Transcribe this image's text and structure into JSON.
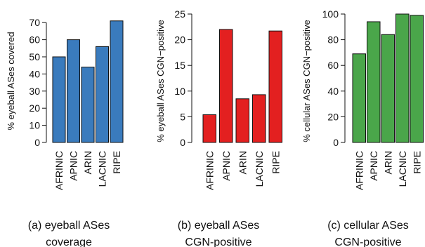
{
  "chart_data": [
    {
      "type": "bar",
      "title": "",
      "categories": [
        "AFRINIC",
        "APNIC",
        "ARIN",
        "LACNIC",
        "RIPE"
      ],
      "values": [
        50,
        60,
        44,
        56,
        71
      ],
      "ylabel": "% eyeball ASes covered",
      "xlabel": "",
      "ylim": [
        0,
        75
      ],
      "yticks": [
        0,
        10,
        20,
        30,
        40,
        50,
        60,
        70
      ],
      "color": "#3a7bbd",
      "caption": "(a) eyeball ASes coverage",
      "caption_lines": [
        "(a) eyeball ASes",
        "coverage"
      ],
      "grid": false
    },
    {
      "type": "bar",
      "title": "",
      "categories": [
        "AFRINIC",
        "APNIC",
        "ARIN",
        "LACNIC",
        "RIPE"
      ],
      "values": [
        5.4,
        22,
        8.5,
        9.3,
        21.7
      ],
      "ylabel": "% eyeball ASes CGN−positive",
      "xlabel": "",
      "ylim": [
        0,
        25
      ],
      "yticks": [
        0,
        5,
        10,
        15,
        20,
        25
      ],
      "color": "#e32020",
      "caption": "(b) eyeball ASes CGN-positive",
      "caption_lines": [
        "(b) eyeball ASes",
        "CGN-positive"
      ],
      "grid": false
    },
    {
      "type": "bar",
      "title": "",
      "categories": [
        "AFRINIC",
        "APNIC",
        "ARIN",
        "LACNIC",
        "RIPE"
      ],
      "values": [
        69,
        94,
        84,
        100,
        99
      ],
      "ylabel": "% cellular ASes CGN−positive",
      "xlabel": "",
      "ylim": [
        0,
        100
      ],
      "yticks": [
        0,
        20,
        40,
        60,
        80,
        100
      ],
      "color": "#4aa64a",
      "caption": "(c) cellular ASes CGN-positive",
      "caption_lines": [
        "(c) cellular ASes",
        "CGN-positive"
      ],
      "grid": false
    }
  ]
}
